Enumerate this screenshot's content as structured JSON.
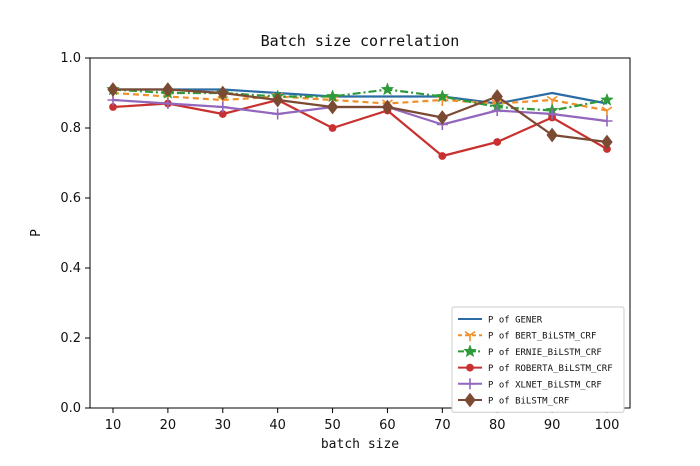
{
  "chart_data": {
    "type": "line",
    "title": "Batch size correlation",
    "xlabel": "batch size",
    "ylabel": "P",
    "ylim": [
      0.0,
      1.0
    ],
    "yticks": [
      "0.0",
      "0.2",
      "0.4",
      "0.6",
      "0.8",
      "1.0"
    ],
    "x": [
      10,
      20,
      30,
      40,
      50,
      60,
      70,
      80,
      90,
      100
    ],
    "legend_position": "lower right",
    "grid": false,
    "series": [
      {
        "name": "P of GENER",
        "color": "#2c6ca5",
        "line_style": "solid",
        "marker": "none",
        "values": [
          0.91,
          0.91,
          0.91,
          0.9,
          0.89,
          0.89,
          0.89,
          0.87,
          0.9,
          0.87
        ]
      },
      {
        "name": "P of BERT_BiLSTM_CRF",
        "color": "#f0902a",
        "line_style": "dashed",
        "marker": "tri_down",
        "values": [
          0.9,
          0.89,
          0.88,
          0.89,
          0.88,
          0.87,
          0.88,
          0.87,
          0.88,
          0.85
        ]
      },
      {
        "name": "P of ERNIE_BiLSTM_CRF",
        "color": "#2e9a3a",
        "line_style": "dashdot",
        "marker": "star",
        "values": [
          0.91,
          0.9,
          0.9,
          0.89,
          0.89,
          0.91,
          0.89,
          0.86,
          0.85,
          0.88
        ]
      },
      {
        "name": "P of ROBERTA_BiLSTM_CRF",
        "color": "#c8312f",
        "line_style": "solid",
        "marker": "circle",
        "values": [
          0.86,
          0.87,
          0.84,
          0.88,
          0.8,
          0.85,
          0.72,
          0.76,
          0.83,
          0.74
        ]
      },
      {
        "name": "P of XLNET_BiLSTM_CRF",
        "color": "#9367bd",
        "line_style": "solid",
        "marker": "plus",
        "values": [
          0.88,
          0.87,
          0.86,
          0.84,
          0.86,
          0.86,
          0.81,
          0.85,
          0.84,
          0.82
        ]
      },
      {
        "name": "P of BiLSTM_CRF",
        "color": "#7b4a33",
        "line_style": "solid",
        "marker": "diamond",
        "values": [
          0.91,
          0.91,
          0.9,
          0.88,
          0.86,
          0.86,
          0.83,
          0.89,
          0.78,
          0.76
        ]
      }
    ]
  }
}
